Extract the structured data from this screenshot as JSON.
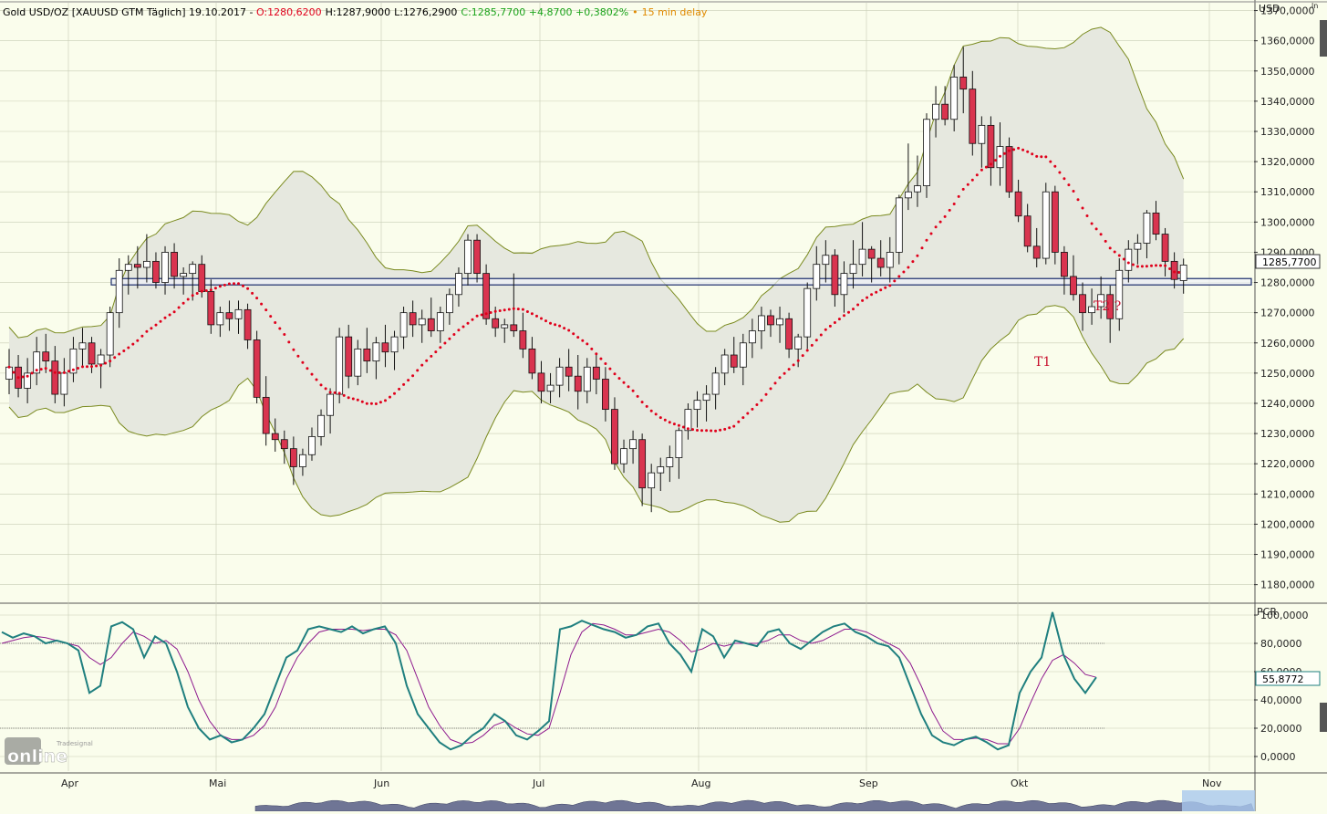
{
  "header": {
    "instrument": "Gold USD/OZ [XAUUSD GTM Täglich] 19.10.2017",
    "dash": " - ",
    "open": "O:1280,6200",
    "high": "H:1287,9000",
    "low": "L:1276,2900",
    "close": "C:1285,7700 +4,8700 +0,3802%",
    "delay_dot": "•",
    "delay": "15 min delay",
    "colors": {
      "open": "#e0001b",
      "close": "#1aa31a",
      "delay": "#e08a00"
    }
  },
  "price_axis": {
    "currency": "USD",
    "scale_mode": "ln",
    "ticks": [
      "1370,0000",
      "1360,0000",
      "1350,0000",
      "1340,0000",
      "1330,0000",
      "1320,0000",
      "1310,0000",
      "1300,0000",
      "1290,0000",
      "1280,0000",
      "1270,0000",
      "1260,0000",
      "1250,0000",
      "1240,0000",
      "1230,0000",
      "1220,0000",
      "1210,0000",
      "1200,0000",
      "1190,0000",
      "1180,0000"
    ],
    "last_price_label": "1285,7700"
  },
  "oscillator": {
    "name": "PCR",
    "ticks": [
      "100,0000",
      "80,0000",
      "60,0000",
      "40,0000",
      "20,0000",
      "0,0000"
    ],
    "current_label": "55,8772",
    "levels": [
      20,
      80
    ]
  },
  "months": [
    "Apr",
    "Mai",
    "Jun",
    "Jul",
    "Aug",
    "Sep",
    "Okt",
    "Nov"
  ],
  "annotations": {
    "t1": "T1",
    "t2": "T2 ?"
  },
  "logo": {
    "small": "Tradesignal",
    "big": "online"
  },
  "chart_data": {
    "type": "candlestick",
    "ylim": [
      1175,
      1373
    ],
    "series_colors": {
      "band": "#7a8a1f",
      "band_fill": "#e6e8df",
      "dots": "#e0001b",
      "up": "#ffffff",
      "down": "#d9344f",
      "k": "#1f7f7f",
      "d": "#8e1a8e"
    },
    "support_zone": [
      1279.2,
      1281.3
    ],
    "ohlc": [
      [
        1248,
        1258,
        1243,
        1252
      ],
      [
        1252,
        1256,
        1242,
        1245
      ],
      [
        1245,
        1255,
        1240,
        1250
      ],
      [
        1250,
        1262,
        1246,
        1257
      ],
      [
        1257,
        1263,
        1250,
        1254
      ],
      [
        1254,
        1259,
        1240,
        1243
      ],
      [
        1243,
        1255,
        1239,
        1250
      ],
      [
        1250,
        1262,
        1247,
        1258
      ],
      [
        1258,
        1265,
        1252,
        1260
      ],
      [
        1260,
        1262,
        1250,
        1253
      ],
      [
        1253,
        1258,
        1245,
        1256
      ],
      [
        1256,
        1272,
        1252,
        1270
      ],
      [
        1270,
        1288,
        1265,
        1284
      ],
      [
        1284,
        1289,
        1276,
        1286
      ],
      [
        1286,
        1292,
        1278,
        1285
      ],
      [
        1285,
        1296,
        1280,
        1287
      ],
      [
        1287,
        1290,
        1278,
        1280
      ],
      [
        1280,
        1292,
        1276,
        1290
      ],
      [
        1290,
        1293,
        1278,
        1282
      ],
      [
        1282,
        1285,
        1276,
        1283
      ],
      [
        1283,
        1287,
        1274,
        1286
      ],
      [
        1286,
        1289,
        1275,
        1277
      ],
      [
        1277,
        1281,
        1263,
        1266
      ],
      [
        1266,
        1272,
        1262,
        1270
      ],
      [
        1270,
        1274,
        1264,
        1268
      ],
      [
        1268,
        1274,
        1263,
        1271
      ],
      [
        1271,
        1273,
        1258,
        1261
      ],
      [
        1261,
        1264,
        1240,
        1242
      ],
      [
        1242,
        1249,
        1226,
        1230
      ],
      [
        1230,
        1235,
        1224,
        1228
      ],
      [
        1228,
        1231,
        1220,
        1225
      ],
      [
        1225,
        1229,
        1213,
        1219
      ],
      [
        1219,
        1225,
        1216,
        1223
      ],
      [
        1223,
        1232,
        1221,
        1229
      ],
      [
        1229,
        1238,
        1226,
        1236
      ],
      [
        1236,
        1245,
        1230,
        1243
      ],
      [
        1243,
        1265,
        1240,
        1262
      ],
      [
        1262,
        1266,
        1245,
        1249
      ],
      [
        1249,
        1261,
        1246,
        1258
      ],
      [
        1258,
        1265,
        1250,
        1254
      ],
      [
        1254,
        1262,
        1248,
        1260
      ],
      [
        1260,
        1266,
        1252,
        1257
      ],
      [
        1257,
        1264,
        1251,
        1262
      ],
      [
        1262,
        1272,
        1258,
        1270
      ],
      [
        1270,
        1274,
        1262,
        1266
      ],
      [
        1266,
        1271,
        1260,
        1268
      ],
      [
        1268,
        1275,
        1262,
        1264
      ],
      [
        1264,
        1272,
        1260,
        1270
      ],
      [
        1270,
        1278,
        1266,
        1276
      ],
      [
        1276,
        1285,
        1272,
        1283
      ],
      [
        1283,
        1296,
        1279,
        1294
      ],
      [
        1294,
        1296,
        1280,
        1283
      ],
      [
        1283,
        1286,
        1266,
        1268
      ],
      [
        1268,
        1272,
        1262,
        1265
      ],
      [
        1265,
        1268,
        1260,
        1266
      ],
      [
        1266,
        1283,
        1262,
        1264
      ],
      [
        1264,
        1270,
        1255,
        1258
      ],
      [
        1258,
        1262,
        1248,
        1250
      ],
      [
        1250,
        1254,
        1240,
        1244
      ],
      [
        1244,
        1250,
        1240,
        1246
      ],
      [
        1246,
        1255,
        1242,
        1252
      ],
      [
        1252,
        1258,
        1244,
        1249
      ],
      [
        1249,
        1256,
        1238,
        1244
      ],
      [
        1244,
        1255,
        1240,
        1252
      ],
      [
        1252,
        1256,
        1243,
        1248
      ],
      [
        1248,
        1252,
        1234,
        1238
      ],
      [
        1238,
        1242,
        1218,
        1220
      ],
      [
        1220,
        1228,
        1217,
        1225
      ],
      [
        1225,
        1231,
        1220,
        1228
      ],
      [
        1228,
        1230,
        1206,
        1212
      ],
      [
        1212,
        1220,
        1204,
        1217
      ],
      [
        1217,
        1222,
        1211,
        1219
      ],
      [
        1219,
        1226,
        1214,
        1222
      ],
      [
        1222,
        1232,
        1215,
        1231
      ],
      [
        1231,
        1240,
        1228,
        1238
      ],
      [
        1238,
        1244,
        1232,
        1241
      ],
      [
        1241,
        1246,
        1234,
        1243
      ],
      [
        1243,
        1252,
        1238,
        1250
      ],
      [
        1250,
        1258,
        1246,
        1256
      ],
      [
        1256,
        1262,
        1250,
        1252
      ],
      [
        1252,
        1263,
        1246,
        1260
      ],
      [
        1260,
        1268,
        1255,
        1264
      ],
      [
        1264,
        1272,
        1258,
        1269
      ],
      [
        1269,
        1271,
        1262,
        1266
      ],
      [
        1266,
        1272,
        1260,
        1268
      ],
      [
        1268,
        1270,
        1255,
        1258
      ],
      [
        1258,
        1263,
        1252,
        1262
      ],
      [
        1262,
        1280,
        1258,
        1278
      ],
      [
        1278,
        1292,
        1274,
        1286
      ],
      [
        1286,
        1294,
        1280,
        1289
      ],
      [
        1289,
        1291,
        1272,
        1276
      ],
      [
        1276,
        1287,
        1270,
        1283
      ],
      [
        1283,
        1294,
        1278,
        1286
      ],
      [
        1286,
        1300,
        1282,
        1291
      ],
      [
        1291,
        1292,
        1280,
        1288
      ],
      [
        1288,
        1294,
        1282,
        1285
      ],
      [
        1285,
        1295,
        1280,
        1290
      ],
      [
        1290,
        1309,
        1286,
        1308
      ],
      [
        1308,
        1326,
        1304,
        1310
      ],
      [
        1310,
        1322,
        1305,
        1312
      ],
      [
        1312,
        1336,
        1308,
        1334
      ],
      [
        1334,
        1345,
        1328,
        1339
      ],
      [
        1339,
        1345,
        1332,
        1334
      ],
      [
        1334,
        1352,
        1330,
        1348
      ],
      [
        1348,
        1358,
        1336,
        1344
      ],
      [
        1344,
        1350,
        1322,
        1326
      ],
      [
        1326,
        1335,
        1318,
        1332
      ],
      [
        1332,
        1335,
        1312,
        1318
      ],
      [
        1318,
        1333,
        1312,
        1325
      ],
      [
        1325,
        1328,
        1308,
        1310
      ],
      [
        1310,
        1314,
        1300,
        1302
      ],
      [
        1302,
        1306,
        1290,
        1292
      ],
      [
        1292,
        1298,
        1285,
        1288
      ],
      [
        1288,
        1313,
        1286,
        1310
      ],
      [
        1310,
        1312,
        1286,
        1290
      ],
      [
        1290,
        1292,
        1276,
        1282
      ],
      [
        1282,
        1289,
        1274,
        1276
      ],
      [
        1276,
        1280,
        1264,
        1270
      ],
      [
        1270,
        1278,
        1266,
        1272
      ],
      [
        1272,
        1282,
        1268,
        1276
      ],
      [
        1276,
        1279,
        1260,
        1268
      ],
      [
        1268,
        1288,
        1264,
        1284
      ],
      [
        1284,
        1294,
        1280,
        1291
      ],
      [
        1291,
        1296,
        1286,
        1293
      ],
      [
        1293,
        1304,
        1288,
        1303
      ],
      [
        1303,
        1307,
        1294,
        1296
      ],
      [
        1296,
        1298,
        1282,
        1287
      ],
      [
        1287,
        1290,
        1278,
        1281
      ],
      [
        1280.62,
        1287.9,
        1276.29,
        1285.77
      ]
    ],
    "osc_k": [
      88,
      84,
      87,
      85,
      80,
      82,
      80,
      75,
      45,
      50,
      92,
      95,
      90,
      70,
      85,
      80,
      60,
      35,
      20,
      12,
      15,
      10,
      12,
      20,
      30,
      50,
      70,
      75,
      90,
      92,
      90,
      88,
      92,
      87,
      90,
      92,
      80,
      50,
      30,
      20,
      10,
      5,
      8,
      15,
      20,
      30,
      25,
      15,
      12,
      18,
      25,
      90,
      92,
      96,
      93,
      90,
      88,
      84,
      86,
      92,
      94,
      80,
      72,
      60,
      90,
      85,
      70,
      82,
      80,
      78,
      88,
      90,
      80,
      76,
      82,
      88,
      92,
      94,
      88,
      85,
      80,
      78,
      70,
      50,
      30,
      15,
      10,
      8,
      12,
      14,
      10,
      5,
      8,
      45,
      60,
      70,
      102,
      72,
      55,
      45,
      56
    ],
    "osc_d": [
      80,
      82,
      84,
      85,
      84,
      82,
      80,
      78,
      70,
      65,
      70,
      80,
      88,
      85,
      80,
      82,
      76,
      60,
      40,
      25,
      15,
      12,
      12,
      15,
      22,
      35,
      55,
      70,
      80,
      88,
      90,
      90,
      90,
      89,
      90,
      90,
      86,
      75,
      55,
      35,
      22,
      12,
      9,
      10,
      15,
      22,
      25,
      20,
      16,
      15,
      20,
      45,
      72,
      88,
      94,
      93,
      90,
      86,
      86,
      88,
      90,
      88,
      82,
      74,
      76,
      80,
      78,
      80,
      80,
      80,
      82,
      86,
      86,
      82,
      80,
      82,
      86,
      90,
      90,
      88,
      84,
      80,
      76,
      66,
      50,
      32,
      18,
      12,
      12,
      13,
      12,
      9,
      9,
      20,
      38,
      55,
      68,
      72,
      66,
      58,
      56
    ]
  }
}
